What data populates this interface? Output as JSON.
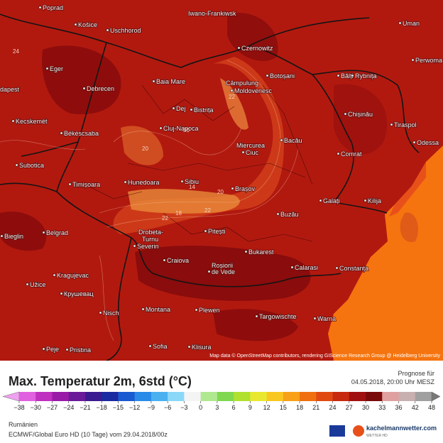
{
  "map": {
    "cities": [
      "Poprad",
      "Iwano-Frankiwsk",
      "Košice",
      "Uschhorod",
      "Czernowitz",
      "Uman",
      "Perwoma",
      "Eger",
      "Baia Mare",
      "Câmpulung",
      "Moldovenesc",
      "Botoșani",
      "Bălți",
      "Rybnița",
      "dapest",
      "Debrecen",
      "Dej",
      "Bistrița",
      "Chișinău",
      "Kecskemét",
      "Békéscsaba",
      "Cluj-Napoca",
      "Tiraspol",
      "Miercurea",
      "Ciuc",
      "Bacău",
      "Comrat",
      "Odessa",
      "Subotica",
      "Timișoara",
      "Hunedoara",
      "Sibiu",
      "Brașov",
      "Galați",
      "Kilija",
      "Buzău",
      "Bieglin",
      "Belgrad",
      "Pitești",
      "Drobeta-",
      "Turnu",
      "Severin",
      "Bukarest",
      "Craiova",
      "Roșiorii",
      "de Vede",
      "Calarasi",
      "Constanța",
      "Kragujevac",
      "Užice",
      "Крушевац",
      "Nisch",
      "Montana",
      "Plewen",
      "Targowischte",
      "Warna",
      "Peje",
      "Pristina",
      "Sofia",
      "Klisura"
    ],
    "contour_labels": [
      "24",
      "30",
      "20",
      "22",
      "18",
      "22",
      "20",
      "14",
      "22"
    ],
    "attribution": "Map data © OpenStreetMap contributors, rendering GIScience Research Group @ Heidelberg University"
  },
  "panel": {
    "title": "Max. Temperatur 2m, 6std (°C)",
    "prognose_label": "Prognose für",
    "prognose_time": "04.05.2018, 20:00 Uhr MESZ",
    "region": "Rumänien",
    "model_run": "ECMWF/Global Euro HD (10 Tage) vom 29.04.2018/00z",
    "logo_text": "kachelmannwetter.com",
    "logo_sub": "WETTER HD"
  },
  "legend": {
    "labels": [
      "−38",
      "−30",
      "−27",
      "−24",
      "−21",
      "−18",
      "−15",
      "−12",
      "−9",
      "−6",
      "−3",
      "0",
      "3",
      "6",
      "9",
      "12",
      "15",
      "18",
      "21",
      "24",
      "27",
      "30",
      "33",
      "36",
      "42",
      "48"
    ],
    "colors": [
      "#f0a0f0",
      "#e060e0",
      "#c030c0",
      "#9a1aa8",
      "#6a1a98",
      "#3a1a90",
      "#1a2aa0",
      "#1a5ad0",
      "#2a8ae8",
      "#4ab0f0",
      "#8ad8f8",
      "#f4f4f4",
      "#b0e890",
      "#80d850",
      "#b0e030",
      "#e8e830",
      "#f8c820",
      "#f8a018",
      "#f07010",
      "#e04a10",
      "#c82a10",
      "#a01010",
      "#7a0a0a",
      "#e0a0a0",
      "#c8b0b0",
      "#a0a0a0",
      "#787878"
    ]
  }
}
